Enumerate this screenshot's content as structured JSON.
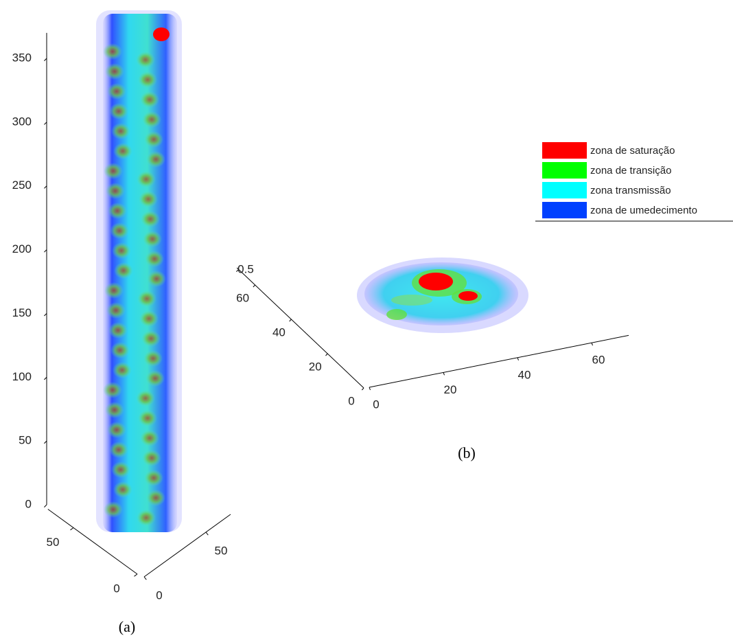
{
  "chart_data": [
    {
      "type": "volume3d",
      "caption": "(a)",
      "xlim": [
        0,
        70
      ],
      "xticks": [
        0,
        50
      ],
      "ylim": [
        0,
        70
      ],
      "yticks": [
        0,
        50
      ],
      "zlim": [
        0,
        370
      ],
      "zticks": [
        0,
        50,
        100,
        150,
        200,
        250,
        300,
        350
      ]
    },
    {
      "type": "volume3d",
      "caption": "(b)",
      "xlim": [
        0,
        70
      ],
      "xticks": [
        0,
        20,
        40,
        60
      ],
      "ylim": [
        0,
        70
      ],
      "yticks": [
        0,
        20,
        40,
        60
      ],
      "zticks": [
        0.5
      ],
      "series": [
        {
          "name": "zona de saturação",
          "color": "#ff0000"
        },
        {
          "name": "zona de transição",
          "color": "#00ff00"
        },
        {
          "name": "zona transmissão",
          "color": "#00ffff"
        },
        {
          "name": "zona de umedecimento",
          "color": "#0040ff"
        }
      ]
    }
  ]
}
